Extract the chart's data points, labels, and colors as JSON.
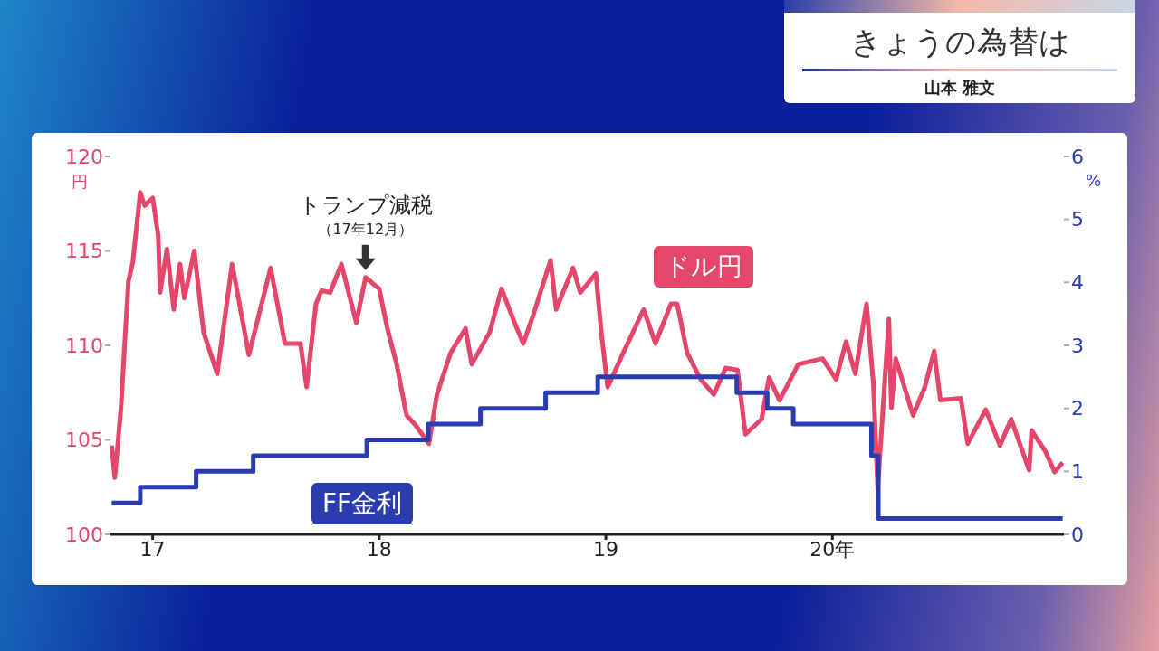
{
  "chart_data": {
    "type": "line",
    "title": "きょうの為替は",
    "subtitle": "山本 雅文",
    "ylabel": "円",
    "y2label": "%",
    "xlim": [
      "2016-10-25",
      "2021-01-08"
    ],
    "xticks": [
      {
        "value": "2017",
        "label": "17"
      },
      {
        "value": "2018",
        "label": "18"
      },
      {
        "value": "2019",
        "label": "19"
      },
      {
        "value": "2020",
        "label": "20年"
      }
    ],
    "ylim": [
      100,
      120
    ],
    "yticks": [
      100,
      105,
      110,
      115,
      120
    ],
    "y2lim": [
      0,
      6
    ],
    "y2ticks": [
      0,
      1,
      2,
      3,
      4,
      5,
      6
    ],
    "legend": false,
    "annotations": [
      {
        "text": "トランプ減税（17年12月）",
        "x": "2017-12-10",
        "y": 113.6
      }
    ],
    "series": [
      {
        "name": "ドル円",
        "color": "#e5466a",
        "x": [
          "2016-10-27",
          "2016-11-01",
          "2016-11-11",
          "2016-11-18",
          "2016-11-23",
          "2016-11-30",
          "2016-12-12",
          "2016-12-19",
          "2017-01-01",
          "2017-01-10",
          "2017-01-13",
          "2017-01-24",
          "2017-02-04",
          "2017-02-14",
          "2017-02-21",
          "2017-03-09",
          "2017-03-24",
          "2017-04-15",
          "2017-05-09",
          "2017-06-05",
          "2017-07-10",
          "2017-08-02",
          "2017-08-27",
          "2017-09-06",
          "2017-09-21",
          "2017-09-30",
          "2017-10-14",
          "2017-11-01",
          "2017-11-25",
          "2017-12-10",
          "2018-01-01",
          "2018-01-14",
          "2018-01-29",
          "2018-02-14",
          "2018-02-28",
          "2018-03-22",
          "2018-04-04",
          "2018-04-26",
          "2018-05-20",
          "2018-05-30",
          "2018-06-28",
          "2018-07-17",
          "2018-08-07",
          "2018-08-21",
          "2018-09-05",
          "2018-10-04",
          "2018-10-13",
          "2018-11-09",
          "2018-11-21",
          "2018-12-16",
          "2018-12-25",
          "2019-01-04",
          "2019-01-29",
          "2019-03-03",
          "2019-03-22",
          "2019-04-16",
          "2019-04-26",
          "2019-05-12",
          "2019-06-03",
          "2019-06-24",
          "2019-07-13",
          "2019-08-01",
          "2019-08-14",
          "2019-09-09",
          "2019-09-21",
          "2019-10-08",
          "2019-11-07",
          "2019-12-16",
          "2020-01-07",
          "2020-01-23",
          "2020-02-07",
          "2020-02-25",
          "2020-03-07",
          "2020-03-14",
          "2020-04-01",
          "2020-04-05",
          "2020-04-12",
          "2020-05-10",
          "2020-05-29",
          "2020-06-13",
          "2020-06-23",
          "2020-07-26",
          "2020-08-06",
          "2020-09-04",
          "2020-09-27",
          "2020-10-15",
          "2020-11-13",
          "2020-11-17",
          "2020-12-09",
          "2020-12-24",
          "2021-01-06"
        ],
        "values": [
          104.7,
          103.0,
          106.7,
          110.7,
          113.4,
          114.4,
          118.1,
          117.4,
          117.8,
          115.8,
          112.8,
          115.1,
          111.9,
          114.3,
          112.5,
          115.0,
          110.7,
          108.5,
          114.3,
          109.5,
          114.1,
          110.1,
          110.1,
          107.8,
          112.2,
          112.9,
          112.8,
          114.3,
          111.2,
          113.6,
          113.0,
          110.9,
          109.0,
          106.3,
          105.8,
          104.8,
          107.4,
          109.6,
          110.9,
          109.0,
          110.7,
          113.0,
          111.2,
          110.1,
          111.5,
          114.5,
          111.9,
          114.1,
          112.8,
          113.8,
          110.6,
          107.8,
          109.6,
          111.9,
          110.1,
          112.2,
          112.2,
          109.6,
          108.2,
          107.4,
          108.8,
          108.7,
          105.3,
          106.1,
          108.3,
          107.1,
          109.0,
          109.3,
          108.2,
          110.2,
          108.5,
          112.2,
          108.0,
          102.4,
          111.4,
          106.7,
          109.3,
          106.3,
          107.8,
          109.7,
          107.1,
          107.2,
          104.8,
          106.6,
          104.7,
          106.1,
          103.4,
          105.5,
          104.4,
          103.3,
          103.8
        ]
      },
      {
        "name": "FF金利",
        "type": "step",
        "axis": "y2",
        "color": "#2b3cb0",
        "x": [
          "2016-10-27",
          "2016-12-12",
          "2017-03-12",
          "2017-06-12",
          "2017-12-12",
          "2018-03-21",
          "2018-06-13",
          "2018-09-26",
          "2018-12-19",
          "2019-07-31",
          "2019-09-18",
          "2019-10-30",
          "2020-03-04",
          "2020-03-15",
          "2021-01-06"
        ],
        "values": [
          0.5,
          0.75,
          1.0,
          1.25,
          1.5,
          1.75,
          2.0,
          2.25,
          2.5,
          2.25,
          2.0,
          1.75,
          1.25,
          0.25,
          0.25
        ]
      }
    ]
  }
}
